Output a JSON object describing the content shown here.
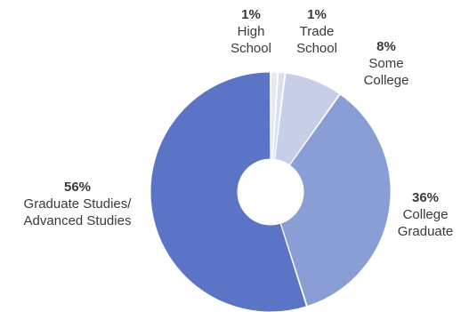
{
  "chart_data": {
    "type": "pie",
    "variant": "donut",
    "start_angle_deg": 0,
    "direction": "clockwise",
    "slices": [
      {
        "label_lines": [
          "High",
          "School"
        ],
        "percent_label": "1%",
        "value": 1,
        "color": "#e6e9f3"
      },
      {
        "label_lines": [
          "Trade",
          "School"
        ],
        "percent_label": "1%",
        "value": 1,
        "color": "#dbe0ef"
      },
      {
        "label_lines": [
          "Some",
          "College"
        ],
        "percent_label": "8%",
        "value": 8,
        "color": "#c7cfe8"
      },
      {
        "label_lines": [
          "College",
          "Graduate"
        ],
        "percent_label": "36%",
        "value": 36,
        "color": "#8a9ed6"
      },
      {
        "label_lines": [
          "Graduate Studies/",
          "Advanced Studies"
        ],
        "percent_label": "56%",
        "value": 56,
        "color": "#5b74c5"
      }
    ]
  }
}
